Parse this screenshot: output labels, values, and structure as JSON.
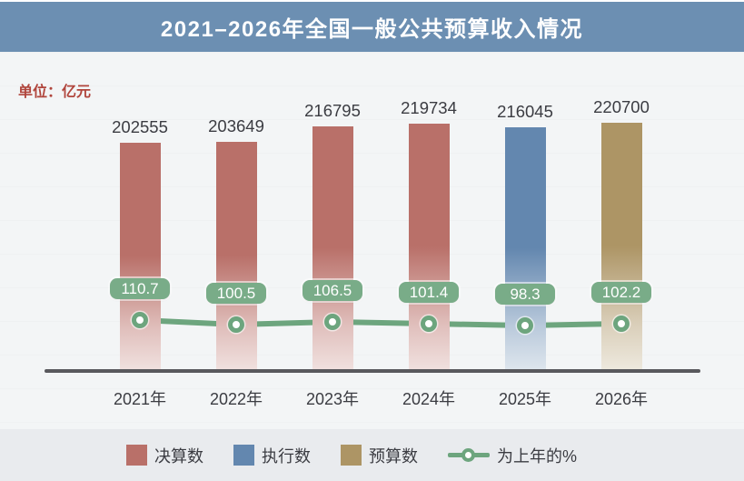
{
  "header": {
    "title": "2021–2026年全国一般公共预算收入情况"
  },
  "unit_label": "单位：亿元",
  "colors": {
    "header_bg": "#6c8fb2",
    "final_account": "#b97069",
    "execution": "#6387af",
    "budget": "#ad9565",
    "line": "#6da57e",
    "axis": "#59595d",
    "text": "#3b3c42",
    "unit_text": "#b0453c",
    "badge_text": "#ffffff"
  },
  "chart_data": {
    "type": "bar",
    "title": "2021–2026年全国一般公共预算收入情况",
    "ylabel": "单位：亿元",
    "categories": [
      "2021年",
      "2022年",
      "2023年",
      "2024年",
      "2025年",
      "2026年"
    ],
    "series": [
      {
        "name": "全国一般公共预算收入",
        "values": [
          202555,
          203649,
          216795,
          219734,
          216045,
          220700
        ],
        "point_types": [
          "决算数",
          "决算数",
          "决算数",
          "决算数",
          "执行数",
          "预算数"
        ]
      }
    ],
    "line_overlay": {
      "name": "为上年的%",
      "type": "line",
      "values": [
        110.7,
        100.5,
        106.5,
        101.4,
        98.3,
        102.2
      ]
    },
    "ylim": [
      0,
      230000
    ],
    "grid": false,
    "legend_position": "bottom"
  },
  "bar_type_colors": {
    "决算数": "final_account",
    "执行数": "execution",
    "预算数": "budget"
  },
  "legend": {
    "items": [
      {
        "label": "决算数",
        "color_key": "final_account",
        "type": "bar"
      },
      {
        "label": "执行数",
        "color_key": "execution",
        "type": "bar"
      },
      {
        "label": "预算数",
        "color_key": "budget",
        "type": "bar"
      },
      {
        "label": "为上年的%",
        "color_key": "line",
        "type": "line"
      }
    ]
  }
}
